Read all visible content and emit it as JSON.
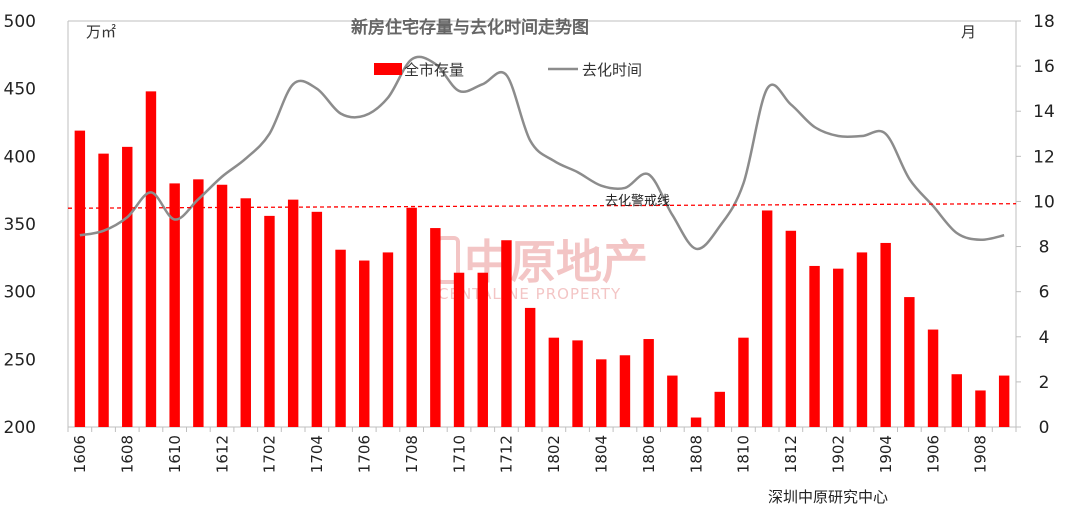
{
  "chart_data": {
    "type": "bar+line",
    "title": "新房住宅存量与去化时间走势图",
    "left_unit": "万㎡",
    "right_unit": "月",
    "left_axis": {
      "min": 200,
      "max": 500,
      "ticks": [
        200,
        250,
        300,
        350,
        400,
        450,
        500
      ]
    },
    "right_axis": {
      "min": 0,
      "max": 18,
      "ticks": [
        0,
        2,
        4,
        6,
        8,
        10,
        12,
        14,
        16,
        18
      ]
    },
    "categories": [
      "1606",
      "1607",
      "1608",
      "1609",
      "1610",
      "1611",
      "1612",
      "1701",
      "1702",
      "1703",
      "1704",
      "1705",
      "1706",
      "1707",
      "1708",
      "1709",
      "1710",
      "1711",
      "1712",
      "1801",
      "1802",
      "1803",
      "1804",
      "1805",
      "1806",
      "1807",
      "1808",
      "1809",
      "1810",
      "1811",
      "1812",
      "1901",
      "1902",
      "1903",
      "1904",
      "1905",
      "1906",
      "1907",
      "1908",
      "1909"
    ],
    "x_tick_labels": [
      "1606",
      "1608",
      "1610",
      "1612",
      "1702",
      "1704",
      "1706",
      "1708",
      "1710",
      "1712",
      "1802",
      "1804",
      "1806",
      "1808",
      "1810",
      "1812",
      "1902",
      "1904",
      "1906",
      "1908"
    ],
    "series": [
      {
        "name": "全市存量",
        "type": "bar",
        "axis": "left",
        "color": "#ff0000",
        "values": [
          419,
          402,
          407,
          448,
          380,
          383,
          379,
          369,
          356,
          368,
          359,
          331,
          323,
          329,
          362,
          347,
          314,
          314,
          338,
          288,
          266,
          264,
          250,
          253,
          265,
          238,
          207,
          226,
          266,
          360,
          345,
          319,
          317,
          329,
          336,
          296,
          272,
          239,
          227,
          238
        ]
      },
      {
        "name": "去化时间",
        "type": "line",
        "axis": "right",
        "color": "#8c8c8c",
        "values": [
          8.5,
          8.7,
          9.3,
          10.4,
          9.2,
          10.1,
          11.1,
          11.9,
          13.0,
          15.2,
          15.0,
          13.9,
          13.8,
          14.6,
          16.3,
          16.1,
          14.9,
          15.2,
          15.6,
          12.7,
          11.8,
          11.3,
          10.7,
          10.6,
          11.2,
          9.4,
          7.9,
          8.9,
          10.8,
          15.0,
          14.3,
          13.3,
          12.9,
          12.9,
          13.0,
          11.0,
          9.8,
          8.6,
          8.3,
          8.5
        ]
      }
    ],
    "reference_line": {
      "label": "去化警戒线",
      "start": 9.7,
      "end": 9.9,
      "axis": "right",
      "color": "#ff0000",
      "style": "dashed"
    },
    "legend_position": "top-center",
    "grid": false,
    "watermark": {
      "cn": "中原地产",
      "en": "CENTALINE PROPERTY"
    },
    "source": "深圳中原研究中心"
  }
}
